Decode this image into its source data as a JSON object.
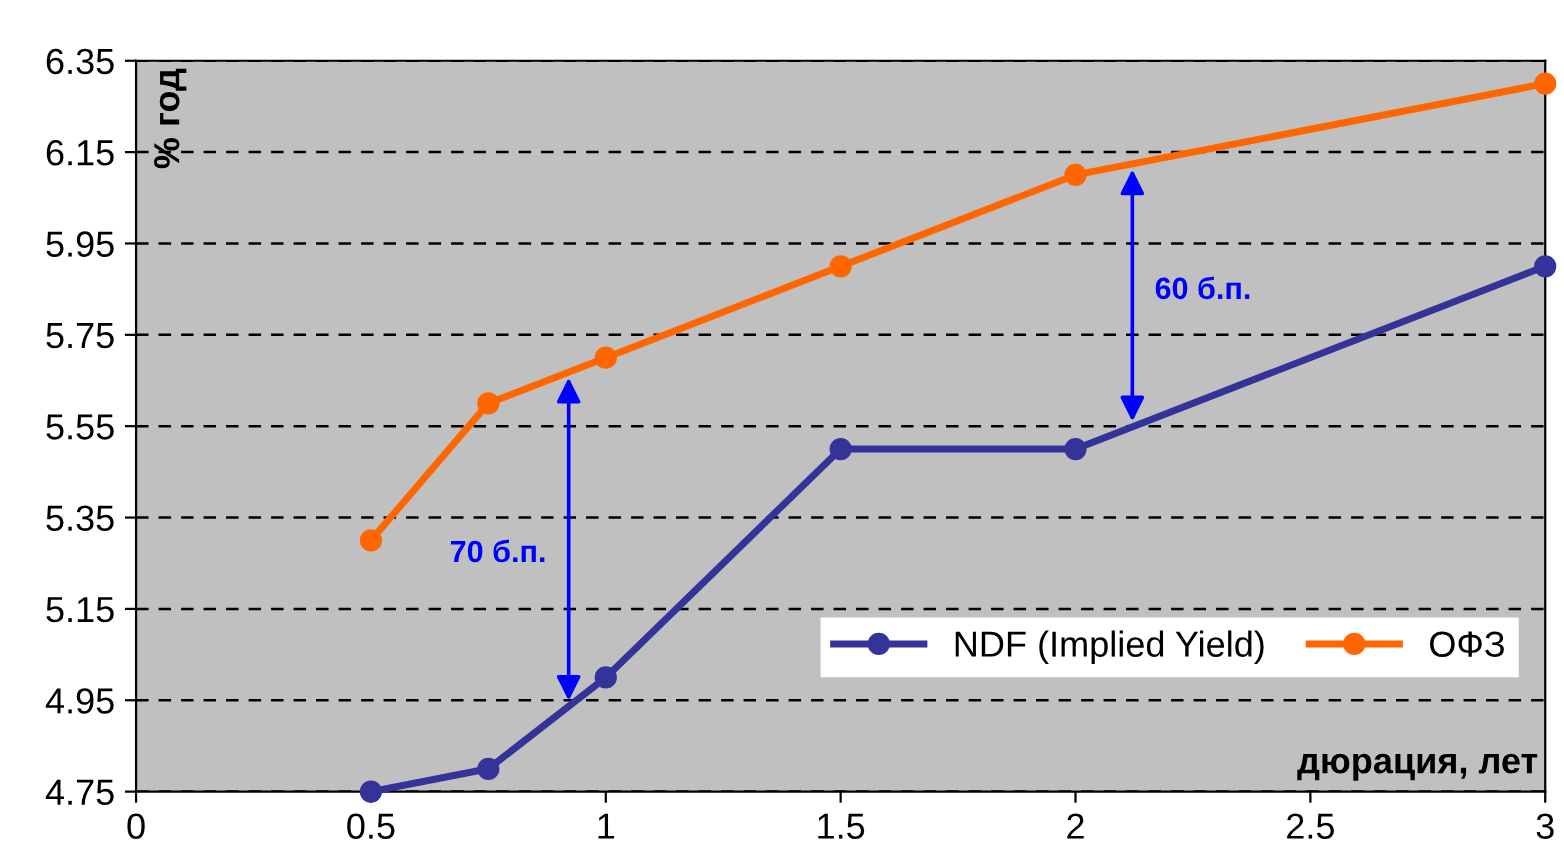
{
  "chart_data": {
    "type": "line",
    "ylabel": "% год",
    "xlabel": "дюрация, лет",
    "x": [
      0.5,
      0.75,
      1,
      1.5,
      2,
      3
    ],
    "series": [
      {
        "name": "NDF (Implied Yield)",
        "color": "#333399",
        "values": [
          4.75,
          4.8,
          5.0,
          5.5,
          5.5,
          5.9
        ]
      },
      {
        "name": "ОФЗ",
        "color": "#ff6600",
        "values": [
          5.3,
          5.6,
          5.7,
          5.9,
          6.1,
          6.3
        ]
      }
    ],
    "xlim": [
      0,
      3
    ],
    "xticks": [
      0,
      0.5,
      1,
      1.5,
      2,
      2.5,
      3
    ],
    "ylim": [
      4.75,
      6.35
    ],
    "yticks": [
      4.75,
      4.95,
      5.15,
      5.35,
      5.55,
      5.75,
      5.95,
      6.15,
      6.35
    ],
    "grid": "y",
    "legend": "bottom right",
    "marker": "circle",
    "line_style": "solid",
    "annotations": [
      "70 б.п.",
      "60 б.п."
    ]
  }
}
